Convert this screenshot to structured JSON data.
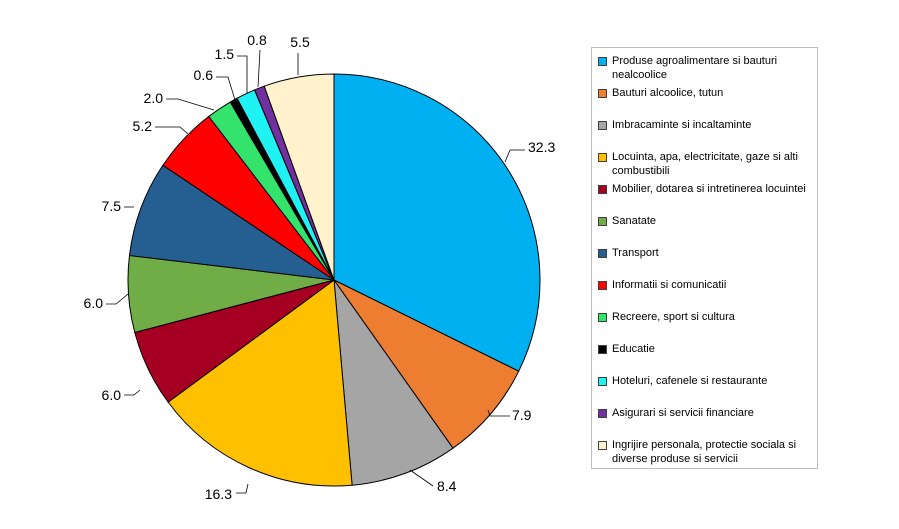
{
  "chart_data": {
    "type": "pie",
    "title": "",
    "start_angle_deg": 0,
    "direction": "clockwise",
    "legend_position": "right",
    "slices": [
      {
        "label": "Produse agroalimentare si bauturi nealcoolice",
        "value": 32.3,
        "value_label": "32.3",
        "color": "#00b0f0"
      },
      {
        "label": "Bauturi alcoolice, tutun",
        "value": 7.9,
        "value_label": "7.9",
        "color": "#ed7d31"
      },
      {
        "label": "Imbracaminte si incaltaminte",
        "value": 8.4,
        "value_label": "8.4",
        "color": "#a5a5a5"
      },
      {
        "label": "Locuinta, apa, electricitate, gaze si alti combustibili",
        "value": 16.3,
        "value_label": "16.3",
        "color": "#ffc000"
      },
      {
        "label": "Mobilier, dotarea si intretinerea locuintei",
        "value": 6.0,
        "value_label": "6.0",
        "color": "#a50021"
      },
      {
        "label": "Sanatate",
        "value": 6.0,
        "value_label": "6.0",
        "color": "#70ad47"
      },
      {
        "label": "Transport",
        "value": 7.5,
        "value_label": "7.5",
        "color": "#255e91"
      },
      {
        "label": "Informatii si comunicatii",
        "value": 5.2,
        "value_label": "5.2",
        "color": "#ff0000"
      },
      {
        "label": "Recreere, sport si cultura",
        "value": 2.0,
        "value_label": "2.0",
        "color": "#33e36b"
      },
      {
        "label": "Educatie",
        "value": 0.6,
        "value_label": "0.6",
        "color": "#000000"
      },
      {
        "label": "Hoteluri, cafenele si restaurante",
        "value": 1.5,
        "value_label": "1.5",
        "color": "#1ff2f2"
      },
      {
        "label": "Asigurari si servicii financiare",
        "value": 0.8,
        "value_label": "0.8",
        "color": "#7030a0"
      },
      {
        "label": "Ingrijire personala, protectie sociala si diverse produse si servicii",
        "value": 5.5,
        "value_label": "5.5",
        "color": "#fff2cc"
      }
    ]
  }
}
